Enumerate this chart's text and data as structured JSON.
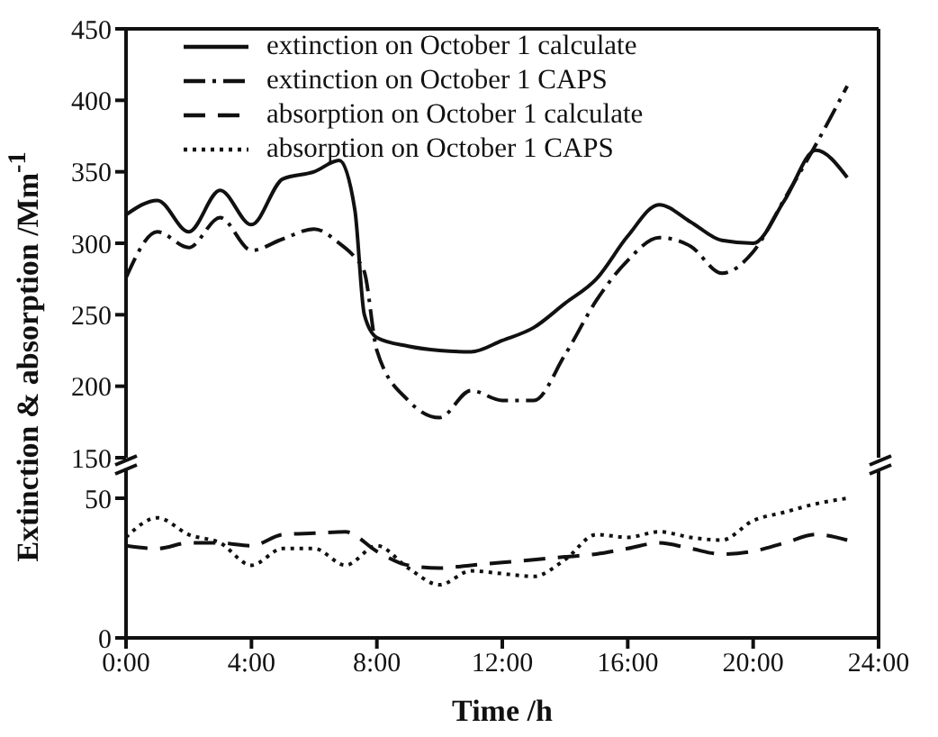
{
  "chart_data": [
    {
      "type": "line",
      "ylabel": "Extinction & absorption /Mm$^{-1}$",
      "xlim": [
        0,
        24
      ],
      "ylim": [
        150,
        450
      ],
      "yticks": [
        150,
        200,
        250,
        300,
        350,
        400,
        450
      ],
      "tick_labels": "y",
      "legend": "top",
      "x": [
        0,
        1,
        2,
        3,
        4,
        5,
        6,
        6.8,
        7.3,
        7.6,
        8,
        9,
        10,
        11,
        12,
        13,
        14,
        15,
        16,
        17,
        18,
        19,
        20,
        21,
        22,
        23
      ],
      "series": [
        {
          "name": "extinction on October 1 calculate",
          "color": "#111111",
          "line_style": "solid",
          "values": [
            320,
            330,
            308,
            337,
            313,
            345,
            350,
            358,
            323,
            250,
            234,
            228,
            225,
            224,
            232,
            241,
            258,
            275,
            305,
            327,
            315,
            302,
            300,
            330,
            365,
            346
          ]
        },
        {
          "name": "extinction on October 1 CAPS",
          "color": "#111111",
          "line_style": "dashdot",
          "values": [
            276,
            308,
            297,
            318,
            295,
            303,
            310,
            300,
            290,
            280,
            225,
            190,
            178,
            197,
            190,
            190,
            222,
            260,
            288,
            304,
            298,
            279,
            294,
            331,
            369,
            410
          ]
        }
      ]
    },
    {
      "type": "line",
      "xlabel": "Time /h",
      "xlim": [
        0,
        24
      ],
      "xticks": [
        {
          "value": 0,
          "label": "0:00"
        },
        {
          "value": 4,
          "label": "4:00"
        },
        {
          "value": 8,
          "label": "8:00"
        },
        {
          "value": 12,
          "label": "12:00"
        },
        {
          "value": 16,
          "label": "16:00"
        },
        {
          "value": 20,
          "label": "20:00"
        },
        {
          "value": 24,
          "label": "24:00"
        }
      ],
      "ylim": [
        0,
        60
      ],
      "yticks": [
        0,
        50
      ],
      "legend": "top",
      "x": [
        0,
        1,
        2,
        3,
        4,
        5,
        6,
        7,
        8,
        9,
        10,
        11,
        12,
        13,
        14,
        15,
        16,
        17,
        18,
        19,
        20,
        21,
        22,
        23
      ],
      "series": [
        {
          "name": "absorption on October 1 calculate",
          "color": "#111111",
          "line_style": "dashed",
          "values": [
            33,
            32,
            34,
            34,
            33,
            37,
            37.5,
            38,
            31,
            26,
            25,
            26,
            27,
            28,
            29,
            30,
            32,
            34,
            32,
            30,
            31,
            34,
            37,
            35
          ]
        },
        {
          "name": "absorption on October 1 CAPS",
          "color": "#111111",
          "line_style": "dotted",
          "values": [
            36,
            43,
            37,
            34,
            26,
            32,
            32,
            26,
            33,
            25,
            19,
            24,
            23,
            22,
            28,
            37,
            36,
            38,
            36,
            35,
            42,
            45,
            48,
            50
          ]
        }
      ]
    }
  ]
}
